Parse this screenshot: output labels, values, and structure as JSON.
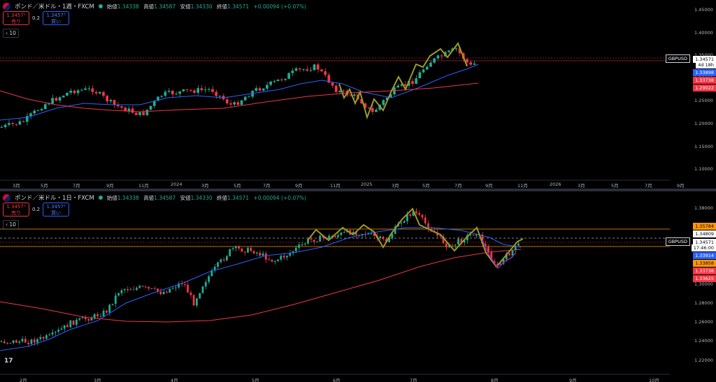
{
  "top": {
    "symbol": "ポンド／米ドル・1週・FXCM",
    "ohlc": [
      {
        "label": "始値",
        "value": "1.34338"
      },
      {
        "label": "高値",
        "value": "1.34587"
      },
      {
        "label": "安値",
        "value": "1.34330"
      },
      {
        "label": "終値",
        "value": "1.34571"
      },
      {
        "label": "",
        "value": "+0.00094 (+0.07%)"
      }
    ],
    "sell_price": "1.3457¹",
    "sell_label": "売り",
    "spread": "0.2",
    "buy_price": "1.3457³",
    "buy_label": "買い",
    "indicator_count": "10",
    "y_ticks": [
      "1.45000",
      "1.40000",
      "1.35000",
      "1.30000",
      "1.25000",
      "1.20000",
      "1.15000",
      "1.10000"
    ],
    "x_ticks": [
      "3月",
      "5月",
      "7月",
      "9月",
      "11月",
      "2024",
      "3月",
      "5月",
      "7月",
      "9月",
      "11月",
      "2025",
      "3月",
      "5月",
      "7月",
      "9月",
      "11月",
      "2026",
      "3月",
      "5月",
      "7月",
      "9月"
    ],
    "tags": [
      {
        "text": "GBPUSD",
        "color": "#ffffff",
        "bg": "#000000",
        "border": "#d1d4dc"
      },
      {
        "text": "1.34571",
        "color": "#000000",
        "bg": "#ffffff"
      },
      {
        "text": "4d 18h",
        "color": "#000000",
        "bg": "#ffffff"
      },
      {
        "text": "1.33898",
        "color": "#ffffff",
        "bg": "#2962ff"
      },
      {
        "text": "1.33738",
        "color": "#ffffff",
        "bg": "#f23645"
      },
      {
        "text": "1.29022",
        "color": "#ffffff",
        "bg": "#f23645"
      }
    ]
  },
  "bottom": {
    "symbol": "ポンド／米ドル・1日・FXCM",
    "ohlc": [
      {
        "label": "始値",
        "value": "1.34338"
      },
      {
        "label": "高値",
        "value": "1.34587"
      },
      {
        "label": "安値",
        "value": "1.34330"
      },
      {
        "label": "終値",
        "value": "1.34571"
      },
      {
        "label": "",
        "value": "+0.00094 (+0.07%)"
      }
    ],
    "sell_price": "1.3457¹",
    "sell_label": "売り",
    "spread": "0.2",
    "buy_price": "1.3457³",
    "buy_label": "買い",
    "indicator_count": "10",
    "y_ticks": [
      "1.38000",
      "1.36000",
      "1.34000",
      "1.32000",
      "1.30000",
      "1.28000",
      "1.26000",
      "1.24000",
      "1.22000"
    ],
    "x_ticks": [
      "2月",
      "3月",
      "4月",
      "5月",
      "6月",
      "7月",
      "8月",
      "9月",
      "10月"
    ],
    "tags": [
      {
        "text": "1.35784",
        "color": "#000000",
        "bg": "#ff9800"
      },
      {
        "text": "1.34809",
        "color": "#000000",
        "bg": "#ffffff"
      },
      {
        "text": "GBPUSD",
        "color": "#ffffff",
        "bg": "#000000",
        "border": "#d1d4dc"
      },
      {
        "text": "1.34571",
        "color": "#000000",
        "bg": "#ffffff"
      },
      {
        "text": "17:46:00",
        "color": "#000000",
        "bg": "#ffffff"
      },
      {
        "text": "1.33914",
        "color": "#ffffff",
        "bg": "#2962ff"
      },
      {
        "text": "1.33858",
        "color": "#000000",
        "bg": "#ff9800"
      },
      {
        "text": "1.33738",
        "color": "#ffffff",
        "bg": "#f23645"
      },
      {
        "text": "1.33625",
        "color": "#ffffff",
        "bg": "#f23645"
      }
    ]
  },
  "logo_text": "17",
  "colors": {
    "up": "#22ab94",
    "down": "#f23645",
    "ma_fast": "#2962ff",
    "ma_slow": "#f23645",
    "zigzag": "#9c9a2a",
    "zigzag2": "#ff9800",
    "bg": "#000000"
  }
}
